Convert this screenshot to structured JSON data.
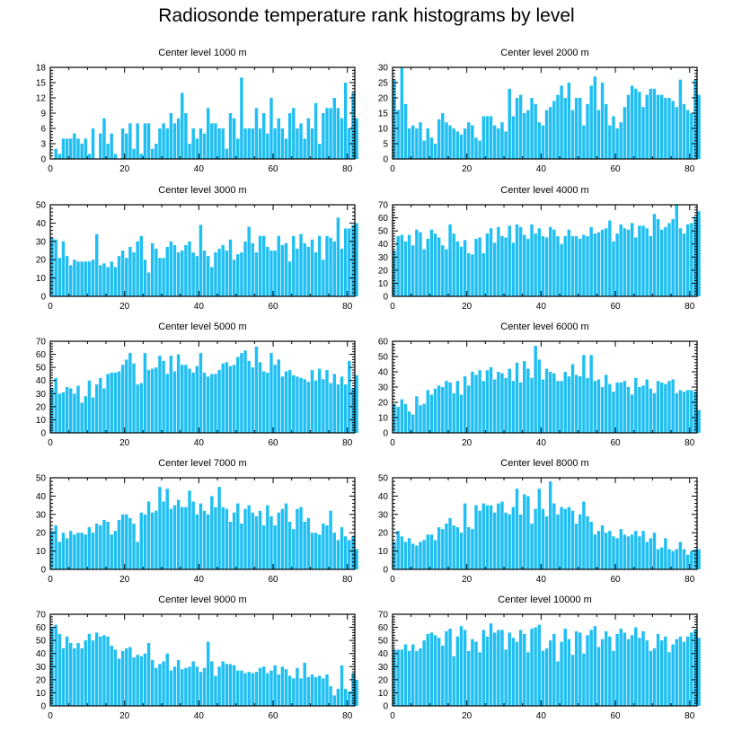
{
  "title": "Radiosonde temperature rank histograms by level",
  "colors": {
    "bar": "#1fbff3",
    "bar_edge": "#ffffff",
    "axis": "#000000"
  },
  "chart_data": [
    {
      "type": "bar",
      "title": "Center level 1000 m",
      "xlim": [
        0,
        82
      ],
      "ylim": [
        0,
        18
      ],
      "xticks": [
        0,
        20,
        40,
        60,
        80
      ],
      "yticks": [
        0,
        3,
        6,
        9,
        12,
        15,
        18
      ],
      "values": [
        0,
        2,
        1,
        4,
        4,
        4,
        5,
        4,
        3,
        4,
        1,
        6,
        0,
        5,
        8,
        3,
        5,
        1,
        0,
        6,
        5,
        7,
        2,
        7,
        1,
        7,
        7,
        2,
        3,
        6,
        7,
        6,
        9,
        7,
        8,
        13,
        9,
        3,
        6,
        4,
        6,
        5,
        10,
        7,
        7,
        6,
        6,
        2,
        9,
        8,
        4,
        16,
        6,
        6,
        6,
        10,
        6,
        9,
        5,
        12,
        6,
        8,
        6,
        4,
        9,
        10,
        6,
        7,
        4,
        8,
        6,
        11,
        3,
        9,
        10,
        10,
        12,
        10,
        8,
        15,
        6,
        13,
        8
      ]
    },
    {
      "type": "bar",
      "title": "Center level 2000 m",
      "xlim": [
        0,
        82
      ],
      "ylim": [
        0,
        30
      ],
      "xticks": [
        0,
        20,
        40,
        60,
        80
      ],
      "yticks": [
        0,
        5,
        10,
        15,
        20,
        25,
        30
      ],
      "values": [
        26,
        16,
        30,
        18,
        10,
        11,
        10,
        12,
        6,
        10,
        7,
        5,
        13,
        15,
        12,
        11,
        10,
        9,
        8,
        10,
        12,
        11,
        7,
        6,
        14,
        14,
        14,
        11,
        10,
        12,
        9,
        23,
        14,
        20,
        21,
        15,
        16,
        20,
        18,
        12,
        11,
        16,
        17,
        19,
        21,
        24,
        20,
        25,
        16,
        20,
        20,
        11,
        18,
        24,
        27,
        16,
        25,
        18,
        11,
        14,
        10,
        12,
        17,
        21,
        24,
        23,
        22,
        17,
        21,
        23,
        23,
        21,
        21,
        20,
        20,
        19,
        17,
        26,
        18,
        16,
        15,
        26,
        21
      ]
    },
    {
      "type": "bar",
      "title": "Center level 3000 m",
      "xlim": [
        0,
        82
      ],
      "ylim": [
        0,
        50
      ],
      "xticks": [
        0,
        20,
        40,
        60,
        80
      ],
      "yticks": [
        0,
        10,
        20,
        30,
        40,
        50
      ],
      "values": [
        32,
        31,
        21,
        30,
        22,
        17,
        20,
        19,
        19,
        19,
        19,
        20,
        34,
        17,
        18,
        16,
        19,
        16,
        22,
        25,
        21,
        27,
        24,
        30,
        33,
        20,
        13,
        29,
        26,
        21,
        21,
        27,
        30,
        28,
        24,
        25,
        28,
        30,
        24,
        22,
        39,
        25,
        22,
        16,
        24,
        26,
        28,
        25,
        31,
        20,
        23,
        24,
        30,
        38,
        29,
        24,
        33,
        33,
        27,
        25,
        25,
        33,
        28,
        29,
        19,
        33,
        26,
        34,
        29,
        27,
        31,
        24,
        33,
        20,
        33,
        32,
        30,
        43,
        26,
        37,
        37,
        39,
        40
      ]
    },
    {
      "type": "bar",
      "title": "Center level 4000 m",
      "xlim": [
        0,
        82
      ],
      "ylim": [
        0,
        70
      ],
      "xticks": [
        0,
        20,
        40,
        60,
        80
      ],
      "yticks": [
        0,
        10,
        20,
        30,
        40,
        50,
        60,
        70
      ],
      "values": [
        35,
        46,
        47,
        42,
        47,
        39,
        51,
        49,
        36,
        44,
        51,
        48,
        45,
        39,
        36,
        55,
        48,
        42,
        38,
        43,
        33,
        32,
        44,
        45,
        33,
        48,
        52,
        41,
        53,
        46,
        45,
        54,
        41,
        55,
        53,
        47,
        44,
        55,
        48,
        52,
        46,
        45,
        53,
        51,
        46,
        40,
        46,
        51,
        46,
        46,
        44,
        47,
        46,
        53,
        48,
        49,
        51,
        52,
        58,
        42,
        48,
        55,
        52,
        51,
        56,
        45,
        54,
        54,
        52,
        46,
        63,
        59,
        51,
        53,
        56,
        59,
        70,
        52,
        48,
        55,
        56,
        61,
        65
      ]
    },
    {
      "type": "bar",
      "title": "Center level 5000 m",
      "xlim": [
        0,
        82
      ],
      "ylim": [
        0,
        70
      ],
      "xticks": [
        0,
        20,
        40,
        60,
        80
      ],
      "yticks": [
        0,
        10,
        20,
        30,
        40,
        50,
        60,
        70
      ],
      "values": [
        34,
        42,
        30,
        31,
        35,
        34,
        30,
        36,
        23,
        28,
        40,
        27,
        37,
        42,
        34,
        45,
        46,
        46,
        47,
        52,
        56,
        61,
        53,
        37,
        38,
        61,
        48,
        49,
        50,
        59,
        55,
        45,
        59,
        47,
        60,
        52,
        52,
        49,
        46,
        51,
        61,
        46,
        43,
        45,
        45,
        48,
        53,
        54,
        51,
        52,
        58,
        61,
        63,
        55,
        50,
        66,
        54,
        47,
        46,
        61,
        52,
        56,
        43,
        47,
        48,
        44,
        43,
        42,
        41,
        39,
        48,
        40,
        49,
        41,
        48,
        38,
        45,
        37,
        43,
        37,
        55,
        34,
        44
      ]
    },
    {
      "type": "bar",
      "title": "Center level 6000 m",
      "xlim": [
        0,
        82
      ],
      "ylim": [
        0,
        60
      ],
      "xticks": [
        0,
        20,
        40,
        60,
        80
      ],
      "yticks": [
        0,
        10,
        20,
        30,
        40,
        50,
        60
      ],
      "values": [
        19,
        17,
        22,
        19,
        14,
        12,
        24,
        18,
        19,
        28,
        25,
        29,
        31,
        30,
        34,
        33,
        26,
        34,
        25,
        37,
        31,
        40,
        38,
        41,
        34,
        41,
        43,
        35,
        40,
        39,
        36,
        42,
        34,
        46,
        33,
        47,
        42,
        36,
        57,
        48,
        35,
        42,
        40,
        39,
        34,
        34,
        40,
        37,
        45,
        38,
        37,
        51,
        36,
        51,
        34,
        35,
        30,
        38,
        32,
        27,
        33,
        33,
        34,
        30,
        25,
        36,
        30,
        31,
        35,
        29,
        26,
        34,
        33,
        32,
        34,
        35,
        26,
        28,
        27,
        28,
        28,
        27,
        15
      ]
    },
    {
      "type": "bar",
      "title": "Center level 7000 m",
      "xlim": [
        0,
        82
      ],
      "ylim": [
        0,
        50
      ],
      "xticks": [
        0,
        20,
        40,
        60,
        80
      ],
      "yticks": [
        0,
        10,
        20,
        30,
        40,
        50
      ],
      "values": [
        21,
        24,
        15,
        20,
        17,
        21,
        19,
        20,
        20,
        19,
        23,
        20,
        25,
        24,
        27,
        26,
        19,
        21,
        27,
        30,
        30,
        28,
        25,
        15,
        31,
        30,
        37,
        31,
        32,
        45,
        37,
        44,
        33,
        35,
        38,
        34,
        34,
        43,
        37,
        30,
        36,
        32,
        30,
        40,
        34,
        45,
        34,
        33,
        26,
        31,
        36,
        25,
        33,
        35,
        31,
        29,
        32,
        24,
        35,
        29,
        24,
        31,
        33,
        36,
        26,
        22,
        33,
        34,
        26,
        28,
        20,
        20,
        19,
        25,
        24,
        32,
        20,
        16,
        23,
        18,
        16,
        18,
        11
      ]
    },
    {
      "type": "bar",
      "title": "Center level 8000 m",
      "xlim": [
        0,
        82
      ],
      "ylim": [
        0,
        50
      ],
      "xticks": [
        0,
        20,
        40,
        60,
        80
      ],
      "yticks": [
        0,
        10,
        20,
        30,
        40,
        50
      ],
      "values": [
        15,
        21,
        18,
        15,
        17,
        14,
        13,
        15,
        16,
        19,
        19,
        16,
        23,
        22,
        25,
        28,
        24,
        23,
        20,
        36,
        23,
        22,
        35,
        32,
        36,
        35,
        35,
        31,
        36,
        37,
        31,
        30,
        34,
        44,
        30,
        41,
        40,
        25,
        33,
        44,
        33,
        29,
        48,
        36,
        30,
        34,
        33,
        34,
        32,
        25,
        30,
        37,
        29,
        26,
        19,
        21,
        24,
        20,
        21,
        18,
        17,
        22,
        19,
        18,
        19,
        21,
        18,
        21,
        15,
        17,
        20,
        11,
        12,
        17,
        11,
        10,
        11,
        15,
        11,
        8,
        10,
        11,
        11
      ]
    },
    {
      "type": "bar",
      "title": "Center level 9000 m",
      "xlim": [
        0,
        82
      ],
      "ylim": [
        0,
        70
      ],
      "xticks": [
        0,
        20,
        40,
        60,
        80
      ],
      "yticks": [
        0,
        10,
        20,
        30,
        40,
        50,
        60,
        70
      ],
      "values": [
        60,
        62,
        55,
        44,
        53,
        48,
        44,
        48,
        44,
        50,
        55,
        50,
        56,
        53,
        54,
        53,
        46,
        43,
        36,
        42,
        44,
        45,
        37,
        39,
        38,
        40,
        48,
        35,
        29,
        32,
        34,
        40,
        27,
        30,
        35,
        28,
        29,
        30,
        34,
        30,
        26,
        29,
        49,
        34,
        23,
        30,
        34,
        32,
        32,
        31,
        27,
        27,
        25,
        26,
        25,
        26,
        29,
        30,
        25,
        27,
        31,
        24,
        30,
        28,
        23,
        21,
        29,
        21,
        33,
        22,
        24,
        22,
        23,
        21,
        24,
        15,
        8,
        13,
        31,
        13,
        11,
        25,
        20
      ]
    },
    {
      "type": "bar",
      "title": "Center level 10000 m",
      "xlim": [
        0,
        82
      ],
      "ylim": [
        0,
        70
      ],
      "xticks": [
        0,
        20,
        40,
        60,
        80
      ],
      "yticks": [
        0,
        10,
        20,
        30,
        40,
        50,
        60,
        70
      ],
      "values": [
        43,
        43,
        43,
        47,
        42,
        47,
        42,
        44,
        50,
        55,
        56,
        54,
        52,
        46,
        57,
        59,
        38,
        53,
        61,
        58,
        42,
        51,
        49,
        41,
        58,
        53,
        63,
        56,
        58,
        58,
        43,
        56,
        52,
        49,
        58,
        55,
        41,
        59,
        60,
        62,
        42,
        44,
        50,
        55,
        34,
        49,
        59,
        51,
        39,
        57,
        56,
        40,
        54,
        58,
        61,
        45,
        51,
        57,
        53,
        42,
        55,
        59,
        56,
        51,
        54,
        60,
        52,
        57,
        50,
        42,
        44,
        55,
        50,
        53,
        41,
        47,
        51,
        53,
        49,
        53,
        56,
        58,
        52
      ]
    }
  ]
}
